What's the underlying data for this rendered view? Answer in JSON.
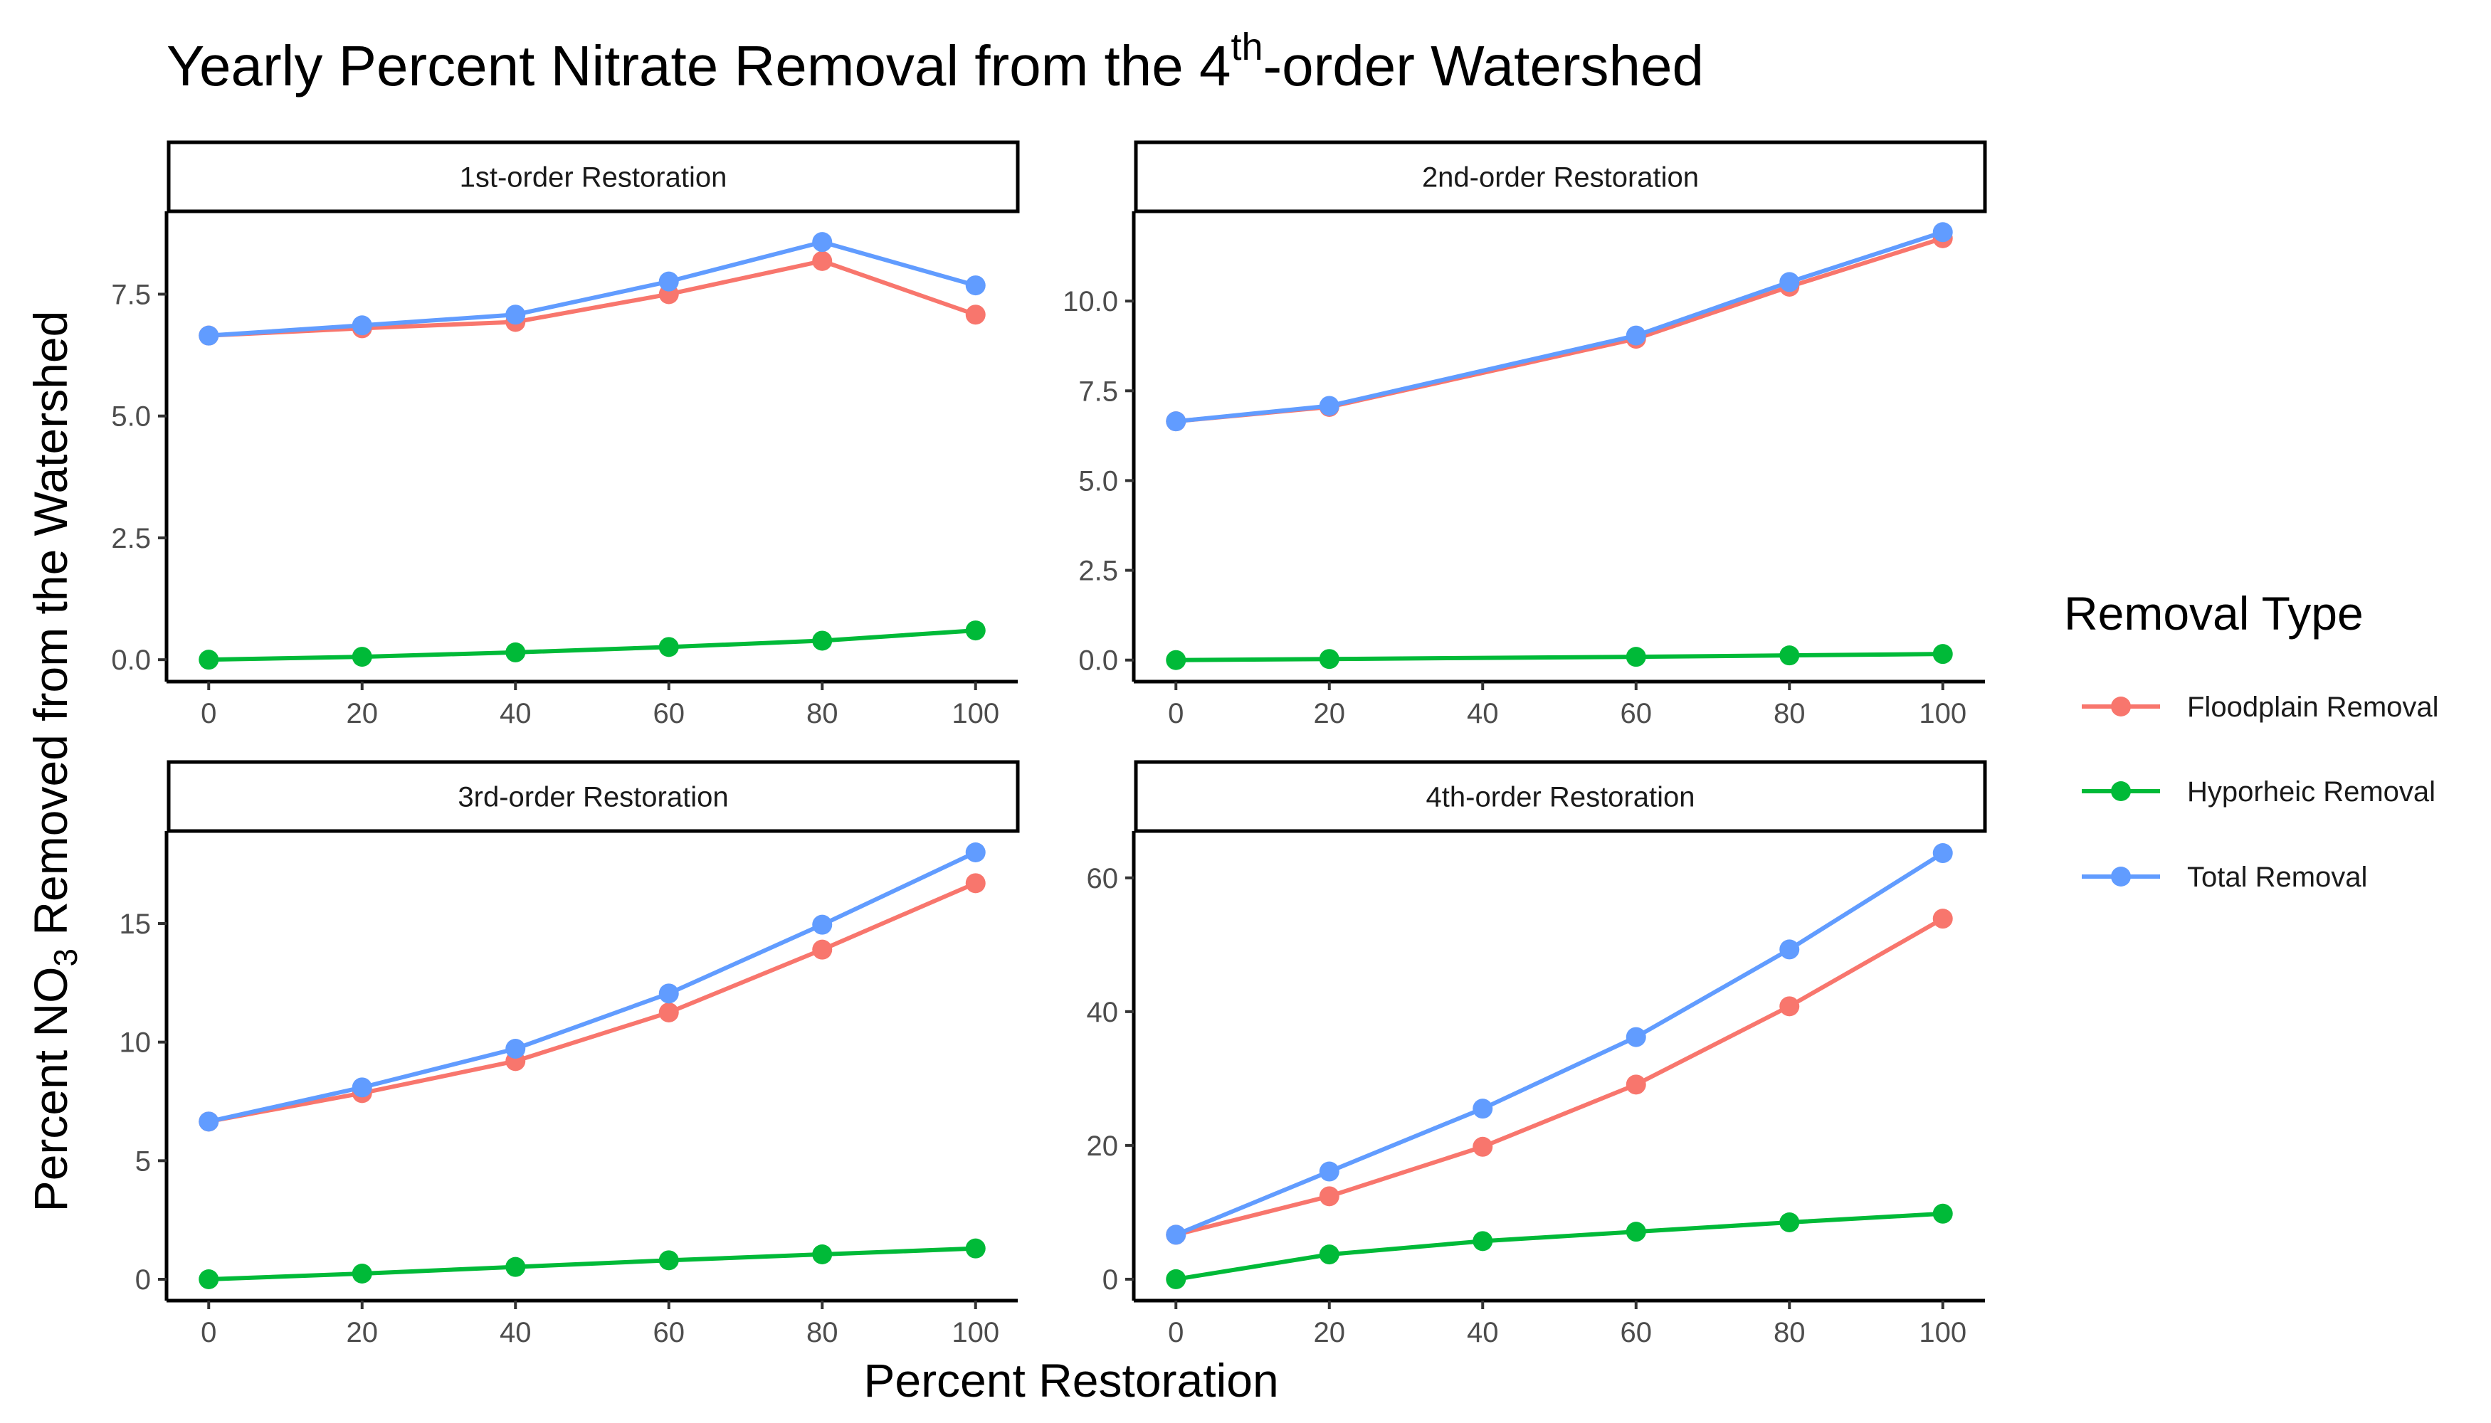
{
  "title": {
    "main": "Yearly Percent Nitrate Removal from the 4",
    "sup": "th",
    "rest": "-order Watershed"
  },
  "xlabel": "Percent Restoration",
  "ylabel": {
    "pre": "Percent NO",
    "sub": "3",
    "post": " Removed from the Watershed"
  },
  "legend": {
    "title": "Removal Type",
    "items": [
      {
        "label": "Floodplain Removal",
        "color": "#F8766D"
      },
      {
        "label": "Hyporheic Removal",
        "color": "#00BA38"
      },
      {
        "label": "Total Removal",
        "color": "#619CFF"
      }
    ]
  },
  "chart_data": [
    {
      "type": "line",
      "panel": "1st-order Restoration",
      "x": [
        0,
        20,
        40,
        60,
        80,
        100
      ],
      "xticks": [
        0,
        20,
        40,
        60,
        80,
        100
      ],
      "yticks": [
        0.0,
        2.5,
        5.0,
        7.5
      ],
      "ytick_labels": [
        "0.0",
        "2.5",
        "5.0",
        "7.5"
      ],
      "ylim": [
        -0.45,
        9.2
      ],
      "series": [
        {
          "name": "Floodplain Removal",
          "color": "#F8766D",
          "values": [
            6.65,
            6.8,
            6.93,
            7.5,
            8.18,
            7.08
          ]
        },
        {
          "name": "Hyporheic Removal",
          "color": "#00BA38",
          "values": [
            0.0,
            0.06,
            0.15,
            0.26,
            0.39,
            0.6
          ]
        },
        {
          "name": "Total Removal",
          "color": "#619CFF",
          "values": [
            6.65,
            6.86,
            7.08,
            7.76,
            8.57,
            7.68
          ]
        }
      ]
    },
    {
      "type": "line",
      "panel": "2nd-order Restoration",
      "x": [
        0,
        20,
        40,
        60,
        80,
        100
      ],
      "xticks": [
        0,
        20,
        40,
        60,
        80,
        100
      ],
      "yticks": [
        0.0,
        2.5,
        5.0,
        7.5,
        10.0
      ],
      "ytick_labels": [
        "0.0",
        "2.5",
        "5.0",
        "7.5",
        "10.0"
      ],
      "ylim": [
        -0.6,
        12.5
      ],
      "series": [
        {
          "name": "Floodplain Removal",
          "color": "#F8766D",
          "values": [
            6.65,
            7.05,
            null,
            8.95,
            10.4,
            11.75
          ]
        },
        {
          "name": "Hyporheic Removal",
          "color": "#00BA38",
          "values": [
            0.0,
            0.03,
            null,
            0.09,
            0.13,
            0.17
          ]
        },
        {
          "name": "Total Removal",
          "color": "#619CFF",
          "values": [
            6.65,
            7.08,
            null,
            9.04,
            10.53,
            11.92
          ]
        }
      ]
    },
    {
      "type": "line",
      "panel": "3rd-order Restoration",
      "x": [
        0,
        20,
        40,
        60,
        80,
        100
      ],
      "xticks": [
        0,
        20,
        40,
        60,
        80,
        100
      ],
      "yticks": [
        0,
        5,
        10,
        15
      ],
      "ytick_labels": [
        "0",
        "5",
        "10",
        "15"
      ],
      "ylim": [
        -0.9,
        18.9
      ],
      "series": [
        {
          "name": "Floodplain Removal",
          "color": "#F8766D",
          "values": [
            6.65,
            7.85,
            9.2,
            11.25,
            13.9,
            16.7
          ]
        },
        {
          "name": "Hyporheic Removal",
          "color": "#00BA38",
          "values": [
            0.0,
            0.24,
            0.52,
            0.8,
            1.05,
            1.3
          ]
        },
        {
          "name": "Total Removal",
          "color": "#619CFF",
          "values": [
            6.65,
            8.09,
            9.72,
            12.05,
            14.95,
            18.0
          ]
        }
      ]
    },
    {
      "type": "line",
      "panel": "4th-order Restoration",
      "x": [
        0,
        20,
        40,
        60,
        80,
        100
      ],
      "xticks": [
        0,
        20,
        40,
        60,
        80,
        100
      ],
      "yticks": [
        0,
        20,
        40,
        60
      ],
      "ytick_labels": [
        "0",
        "20",
        "40",
        "60"
      ],
      "ylim": [
        -3.2,
        67.0
      ],
      "series": [
        {
          "name": "Floodplain Removal",
          "color": "#F8766D",
          "values": [
            6.65,
            12.4,
            19.8,
            29.1,
            40.8,
            53.9
          ]
        },
        {
          "name": "Hyporheic Removal",
          "color": "#00BA38",
          "values": [
            0.0,
            3.7,
            5.7,
            7.1,
            8.5,
            9.8
          ]
        },
        {
          "name": "Total Removal",
          "color": "#619CFF",
          "values": [
            6.65,
            16.1,
            25.5,
            36.2,
            49.3,
            63.7
          ]
        }
      ]
    }
  ]
}
